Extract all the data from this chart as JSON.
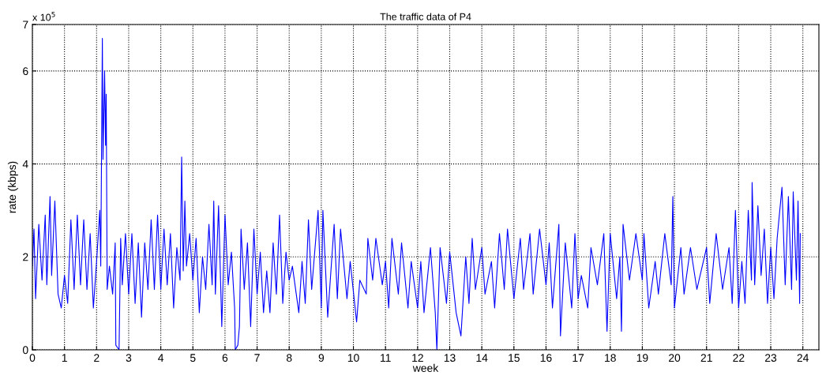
{
  "chart_data": {
    "type": "line",
    "title": "The traffic data of P4",
    "xlabel": "week",
    "ylabel": "rate (kbps)",
    "annotations": [
      "x 10$^{5}$"
    ],
    "x": [
      0,
      0.05,
      0.1,
      0.2,
      0.3,
      0.4,
      0.45,
      0.55,
      0.6,
      0.7,
      0.8,
      0.9,
      1.0,
      1.1,
      1.2,
      1.3,
      1.4,
      1.5,
      1.6,
      1.7,
      1.8,
      1.9,
      2.0,
      2.1,
      2.13,
      2.18,
      2.2,
      2.25,
      2.28,
      2.3,
      2.33,
      2.4,
      2.5,
      2.58,
      2.6,
      2.65,
      2.7,
      2.75,
      2.8,
      2.9,
      3.0,
      3.1,
      3.2,
      3.3,
      3.4,
      3.5,
      3.6,
      3.7,
      3.8,
      3.9,
      4.0,
      4.1,
      4.2,
      4.3,
      4.4,
      4.5,
      4.6,
      4.65,
      4.7,
      4.75,
      4.8,
      4.9,
      5.0,
      5.1,
      5.2,
      5.3,
      5.4,
      5.5,
      5.6,
      5.65,
      5.7,
      5.8,
      5.9,
      6.0,
      6.1,
      6.2,
      6.3,
      6.32,
      6.4,
      6.45,
      6.5,
      6.6,
      6.7,
      6.8,
      6.9,
      7.0,
      7.1,
      7.2,
      7.3,
      7.4,
      7.5,
      7.6,
      7.7,
      7.8,
      7.9,
      8.0,
      8.1,
      8.3,
      8.4,
      8.5,
      8.6,
      8.7,
      8.9,
      9.0,
      9.05,
      9.2,
      9.4,
      9.5,
      9.6,
      9.8,
      9.9,
      10.1,
      10.2,
      10.4,
      10.45,
      10.6,
      10.7,
      10.9,
      11.0,
      11.1,
      11.2,
      11.4,
      11.5,
      11.7,
      11.8,
      12.0,
      12.1,
      12.2,
      12.4,
      12.55,
      12.6,
      12.7,
      12.9,
      13.0,
      13.2,
      13.35,
      13.5,
      13.6,
      13.7,
      13.8,
      14.0,
      14.1,
      14.3,
      14.4,
      14.55,
      14.7,
      14.8,
      15.0,
      15.2,
      15.3,
      15.5,
      15.6,
      15.8,
      16.0,
      16.1,
      16.2,
      16.4,
      16.45,
      16.6,
      16.8,
      16.9,
      17.0,
      17.1,
      17.3,
      17.4,
      17.6,
      17.8,
      17.9,
      18.0,
      18.2,
      18.3,
      18.35,
      18.4,
      18.6,
      18.8,
      19.0,
      19.05,
      19.2,
      19.4,
      19.5,
      19.7,
      19.9,
      19.95,
      20.0,
      20.2,
      20.3,
      20.5,
      20.7,
      21.0,
      21.1,
      21.3,
      21.5,
      21.7,
      21.8,
      21.9,
      22.0,
      22.1,
      22.2,
      22.3,
      22.4,
      22.42,
      22.5,
      22.6,
      22.7,
      22.8,
      22.9,
      23.0,
      23.1,
      23.2,
      23.35,
      23.45,
      23.55,
      23.65,
      23.7,
      23.8,
      23.85,
      23.9,
      23.92
    ],
    "series": [
      {
        "color": "#0000ff",
        "values": [
          1.8,
          2.6,
          1.1,
          2.7,
          1.5,
          2.9,
          1.4,
          3.3,
          1.6,
          3.2,
          1.2,
          0.9,
          1.6,
          1.0,
          2.8,
          1.3,
          2.9,
          1.4,
          2.8,
          1.3,
          2.5,
          0.9,
          1.9,
          3.0,
          1.8,
          6.7,
          4.1,
          6.0,
          4.4,
          5.5,
          1.3,
          1.8,
          1.2,
          2.3,
          0.1,
          0.05,
          0,
          2.4,
          1.4,
          2.5,
          1.2,
          2.5,
          1.0,
          2.3,
          0.7,
          2.3,
          1.3,
          2.8,
          1.3,
          2.9,
          1.3,
          2.6,
          1.4,
          2.5,
          0.9,
          2.2,
          1.5,
          4.15,
          1.7,
          3.2,
          1.8,
          2.5,
          1.5,
          2.4,
          0.8,
          2.0,
          1.3,
          2.7,
          1.4,
          3.2,
          1.2,
          3.1,
          0.5,
          2.9,
          1.4,
          2.1,
          0.9,
          0,
          0.1,
          0.5,
          2.6,
          1.3,
          2.3,
          0.5,
          2.6,
          1.2,
          2.1,
          0.8,
          1.7,
          0.8,
          2.3,
          1.2,
          2.9,
          1.0,
          2.1,
          1.5,
          1.8,
          0.8,
          1.9,
          1.0,
          2.8,
          1.3,
          3.0,
          0.9,
          3.0,
          0.7,
          2.7,
          1.1,
          2.6,
          1.1,
          1.9,
          0.6,
          1.5,
          1.2,
          2.4,
          1.5,
          2.4,
          1.4,
          1.9,
          0.9,
          2.4,
          1.2,
          2.3,
          0.9,
          1.9,
          0.9,
          1.9,
          0.8,
          2.2,
          0.8,
          0,
          2.2,
          1.0,
          2.1,
          0.8,
          0.3,
          2.0,
          1.0,
          2.4,
          1.3,
          2.2,
          1.2,
          1.9,
          0.9,
          2.5,
          1.3,
          2.6,
          1.1,
          2.4,
          1.3,
          2.5,
          1.2,
          2.6,
          1.4,
          2.3,
          0.9,
          2.7,
          0.3,
          2.3,
          0.9,
          2.5,
          1.1,
          1.6,
          0.9,
          2.2,
          1.4,
          2.5,
          0.4,
          2.5,
          1.1,
          2.0,
          0.4,
          2.7,
          1.5,
          2.5,
          1.5,
          2.5,
          0.9,
          1.9,
          1.2,
          2.5,
          1.4,
          3.3,
          0.9,
          2.2,
          1.2,
          2.2,
          1.3,
          2.2,
          1.0,
          2.5,
          1.3,
          2.2,
          1.0,
          3.0,
          0.9,
          1.9,
          1.0,
          3.0,
          1.5,
          3.6,
          1.4,
          3.1,
          1.6,
          2.6,
          1.0,
          2.2,
          1.1,
          2.4,
          3.5,
          1.4,
          3.3,
          1.3,
          3.4,
          1.5,
          3.2,
          1.0,
          2.5
        ]
      }
    ],
    "xlim": [
      0,
      24.5
    ],
    "xticks": [
      0,
      1,
      2,
      3,
      4,
      5,
      6,
      7,
      8,
      9,
      10,
      11,
      12,
      13,
      14,
      15,
      16,
      17,
      18,
      19,
      20,
      21,
      22,
      23,
      24
    ],
    "ylim": [
      0,
      7
    ],
    "yticks": [
      0,
      2,
      4,
      6,
      7
    ],
    "grid": true,
    "line_style": "solid",
    "marker": "none"
  }
}
